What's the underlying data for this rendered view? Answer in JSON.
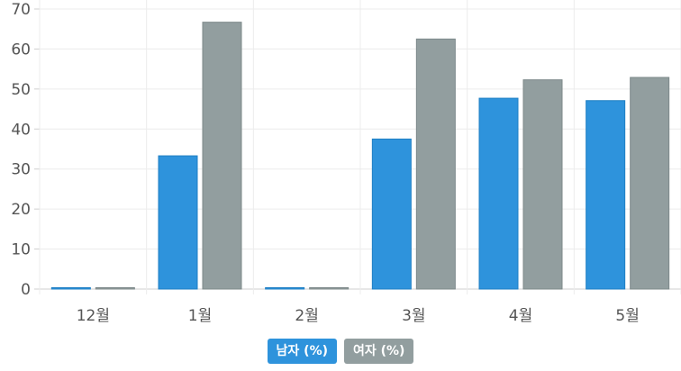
{
  "chart_data": {
    "type": "bar",
    "categories": [
      "12월",
      "1월",
      "2월",
      "3월",
      "4월",
      "5월"
    ],
    "series": [
      {
        "name": "남자 (%)",
        "color": "#2e93dc",
        "values": [
          0.3,
          33.3,
          0.3,
          37.5,
          47.7,
          47.1
        ]
      },
      {
        "name": "여자 (%)",
        "color": "#929e9f",
        "values": [
          0.3,
          66.7,
          0.3,
          62.5,
          52.3,
          52.9
        ]
      }
    ],
    "ylim": [
      0,
      70
    ],
    "yticks": [
      0,
      10,
      20,
      30,
      40,
      50,
      60,
      70
    ],
    "grid": true,
    "legend_position": "bottom-center"
  }
}
